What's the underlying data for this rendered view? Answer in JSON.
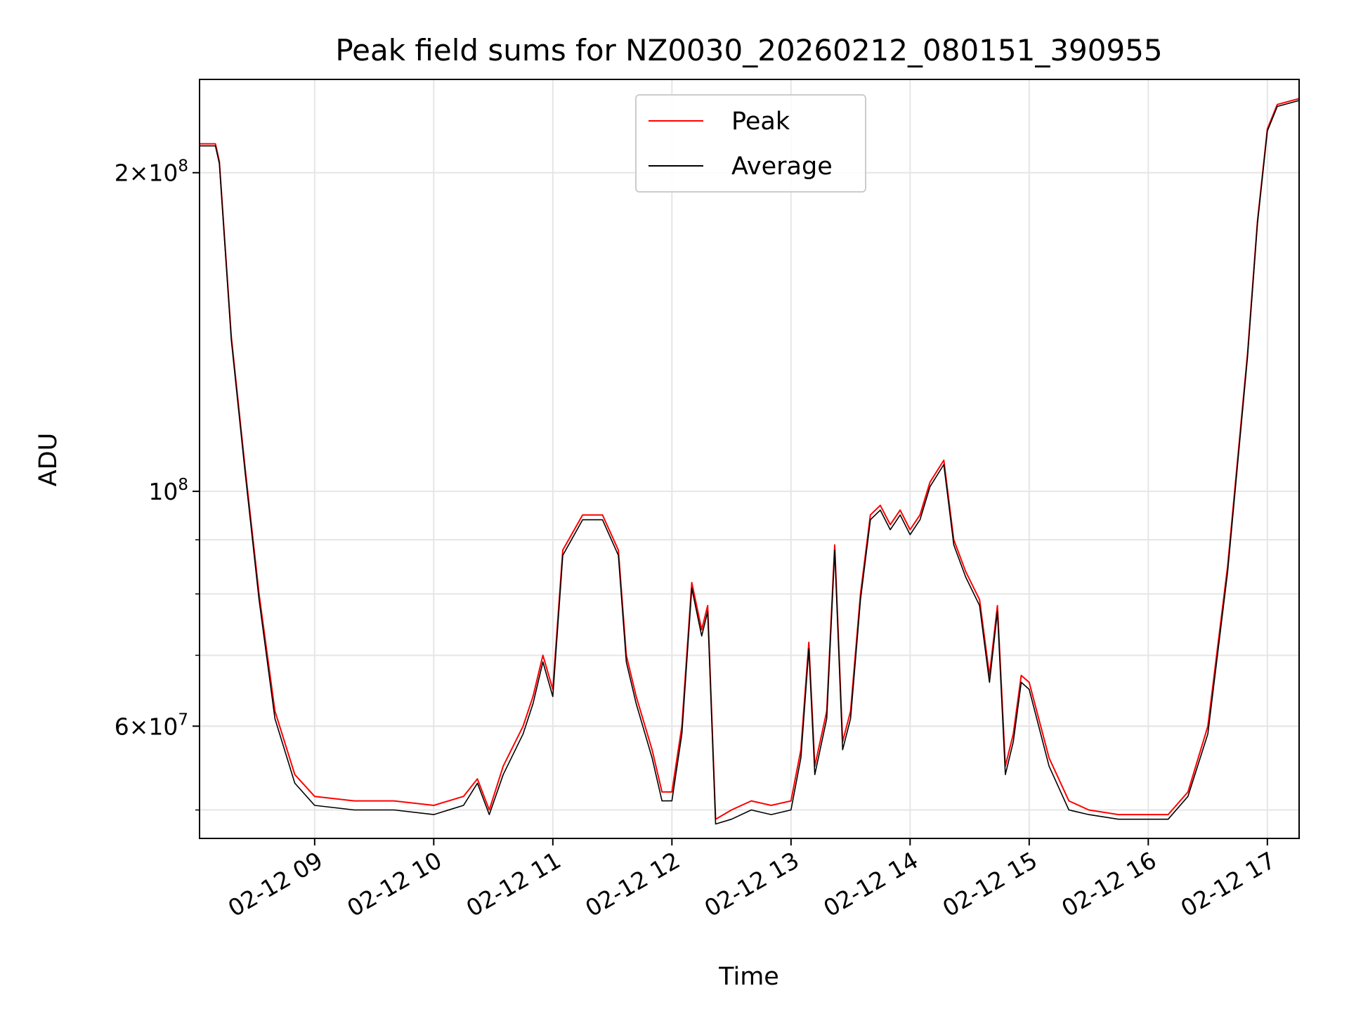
{
  "chart_data": {
    "type": "line",
    "title": "Peak field sums for NZ0030_20260212_080151_390955",
    "xlabel": "Time",
    "ylabel": "ADU",
    "yscale": "log",
    "grid": true,
    "legend_position": "top-center",
    "xlim": [
      "02-12 08:02",
      "02-12 17:16"
    ],
    "ylim": [
      47000000,
      245000000
    ],
    "x_ticks": [
      "02-12 09",
      "02-12 10",
      "02-12 11",
      "02-12 12",
      "02-12 13",
      "02-12 14",
      "02-12 15",
      "02-12 16",
      "02-12 17"
    ],
    "y_tick_labels": [
      {
        "value": 200000000,
        "mantissa": "2",
        "exponent": "8"
      },
      {
        "value": 100000000,
        "mantissa": "",
        "exponent": "8"
      },
      {
        "value": 60000000,
        "mantissa": "6",
        "exponent": "7"
      }
    ],
    "y_minor_ticks": [
      50000000,
      60000000,
      70000000,
      80000000,
      90000000
    ],
    "series": [
      {
        "name": "Peak",
        "color": "#ff0000",
        "x": [
          "02-12 08:02",
          "02-12 08:10",
          "02-12 08:12",
          "02-12 08:18",
          "02-12 08:25",
          "02-12 08:32",
          "02-12 08:40",
          "02-12 08:50",
          "02-12 09:00",
          "02-12 09:20",
          "02-12 09:40",
          "02-12 10:00",
          "02-12 10:15",
          "02-12 10:22",
          "02-12 10:28",
          "02-12 10:35",
          "02-12 10:45",
          "02-12 10:50",
          "02-12 10:55",
          "02-12 11:00",
          "02-12 11:05",
          "02-12 11:15",
          "02-12 11:25",
          "02-12 11:33",
          "02-12 11:37",
          "02-12 11:42",
          "02-12 11:50",
          "02-12 11:55",
          "02-12 12:00",
          "02-12 12:05",
          "02-12 12:10",
          "02-12 12:15",
          "02-12 12:18",
          "02-12 12:22",
          "02-12 12:30",
          "02-12 12:40",
          "02-12 12:50",
          "02-12 13:00",
          "02-12 13:05",
          "02-12 13:09",
          "02-12 13:12",
          "02-12 13:18",
          "02-12 13:22",
          "02-12 13:26",
          "02-12 13:30",
          "02-12 13:35",
          "02-12 13:40",
          "02-12 13:45",
          "02-12 13:50",
          "02-12 13:55",
          "02-12 14:00",
          "02-12 14:05",
          "02-12 14:10",
          "02-12 14:17",
          "02-12 14:22",
          "02-12 14:28",
          "02-12 14:35",
          "02-12 14:40",
          "02-12 14:44",
          "02-12 14:48",
          "02-12 14:52",
          "02-12 14:56",
          "02-12 15:00",
          "02-12 15:10",
          "02-12 15:20",
          "02-12 15:30",
          "02-12 15:45",
          "02-12 16:00",
          "02-12 16:10",
          "02-12 16:20",
          "02-12 16:30",
          "02-12 16:40",
          "02-12 16:50",
          "02-12 16:55",
          "02-12 17:00",
          "02-12 17:05",
          "02-12 17:16"
        ],
        "y": [
          213000000,
          213000000,
          205000000,
          140000000,
          105000000,
          80000000,
          62000000,
          54000000,
          51500000,
          51000000,
          51000000,
          50500000,
          51500000,
          53500000,
          50000000,
          55000000,
          60000000,
          64000000,
          70000000,
          65000000,
          88000000,
          95000000,
          95000000,
          88000000,
          70000000,
          64000000,
          57000000,
          52000000,
          52000000,
          60000000,
          82000000,
          74000000,
          78000000,
          49000000,
          50000000,
          51000000,
          50500000,
          51000000,
          57000000,
          72000000,
          55000000,
          62000000,
          89000000,
          58000000,
          62000000,
          80000000,
          95000000,
          97000000,
          93000000,
          96000000,
          92000000,
          95000000,
          102000000,
          107000000,
          90000000,
          84000000,
          79000000,
          67000000,
          78000000,
          55000000,
          59000000,
          67000000,
          66000000,
          56000000,
          51000000,
          50000000,
          49500000,
          49500000,
          49500000,
          52000000,
          60000000,
          85000000,
          135000000,
          180000000,
          220000000,
          232000000,
          235000000
        ]
      },
      {
        "name": "Average",
        "color": "#000000",
        "x": [
          "02-12 08:02",
          "02-12 08:10",
          "02-12 08:12",
          "02-12 08:18",
          "02-12 08:25",
          "02-12 08:32",
          "02-12 08:40",
          "02-12 08:50",
          "02-12 09:00",
          "02-12 09:20",
          "02-12 09:40",
          "02-12 10:00",
          "02-12 10:15",
          "02-12 10:22",
          "02-12 10:28",
          "02-12 10:35",
          "02-12 10:45",
          "02-12 10:50",
          "02-12 10:55",
          "02-12 11:00",
          "02-12 11:05",
          "02-12 11:15",
          "02-12 11:25",
          "02-12 11:33",
          "02-12 11:37",
          "02-12 11:42",
          "02-12 11:50",
          "02-12 11:55",
          "02-12 12:00",
          "02-12 12:05",
          "02-12 12:10",
          "02-12 12:15",
          "02-12 12:18",
          "02-12 12:22",
          "02-12 12:30",
          "02-12 12:40",
          "02-12 12:50",
          "02-12 13:00",
          "02-12 13:05",
          "02-12 13:09",
          "02-12 13:12",
          "02-12 13:18",
          "02-12 13:22",
          "02-12 13:26",
          "02-12 13:30",
          "02-12 13:35",
          "02-12 13:40",
          "02-12 13:45",
          "02-12 13:50",
          "02-12 13:55",
          "02-12 14:00",
          "02-12 14:05",
          "02-12 14:10",
          "02-12 14:17",
          "02-12 14:22",
          "02-12 14:28",
          "02-12 14:35",
          "02-12 14:40",
          "02-12 14:44",
          "02-12 14:48",
          "02-12 14:52",
          "02-12 14:56",
          "02-12 15:00",
          "02-12 15:10",
          "02-12 15:20",
          "02-12 15:30",
          "02-12 15:45",
          "02-12 16:00",
          "02-12 16:10",
          "02-12 16:20",
          "02-12 16:30",
          "02-12 16:40",
          "02-12 16:50",
          "02-12 16:55",
          "02-12 17:00",
          "02-12 17:05",
          "02-12 17:16"
        ],
        "y": [
          212000000,
          212000000,
          204000000,
          139000000,
          104000000,
          79000000,
          61000000,
          53000000,
          50500000,
          50000000,
          50000000,
          49500000,
          50500000,
          53000000,
          49500000,
          54000000,
          59000000,
          63000000,
          69000000,
          64000000,
          87000000,
          94000000,
          94000000,
          87000000,
          69000000,
          63000000,
          56000000,
          51000000,
          51000000,
          59000000,
          81000000,
          73000000,
          77000000,
          48500000,
          49000000,
          50000000,
          49500000,
          50000000,
          56000000,
          71000000,
          54000000,
          61000000,
          88000000,
          57000000,
          61000000,
          79000000,
          94000000,
          96000000,
          92000000,
          95000000,
          91000000,
          94000000,
          101000000,
          106000000,
          89000000,
          83000000,
          78000000,
          66000000,
          77000000,
          54000000,
          58000000,
          66000000,
          65000000,
          55000000,
          50000000,
          49500000,
          49000000,
          49000000,
          49000000,
          51500000,
          59000000,
          84000000,
          134000000,
          179000000,
          219000000,
          231000000,
          234000000
        ]
      }
    ]
  }
}
